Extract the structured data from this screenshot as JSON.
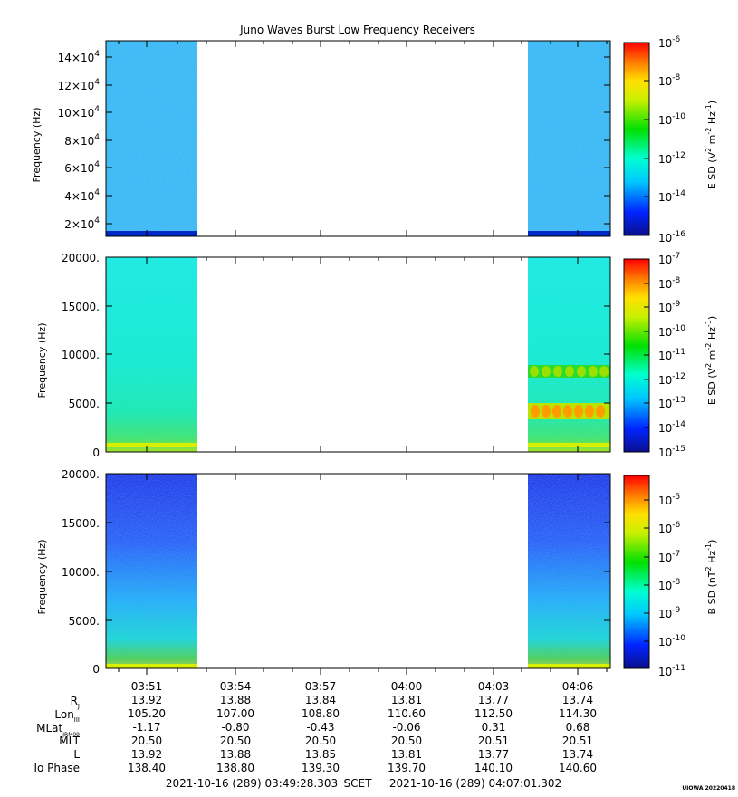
{
  "title": "Juno Waves Burst Low Frequency Receivers",
  "credit": "UIOWA 20220418",
  "footer": {
    "start": "2021-10-16 (289) 03:49:28.303",
    "scet": "SCET",
    "end": "2021-10-16 (289) 04:07:01.302"
  },
  "chart_data": [
    {
      "type": "heatmap",
      "panel": "top",
      "ylabel": "Frequency (Hz)",
      "y_tick_labels": [
        "2×10^4",
        "4×10^4",
        "6×10^4",
        "8×10^4",
        "10×10^4",
        "12×10^4",
        "14×10^4"
      ],
      "y_tick_values": [
        20000,
        40000,
        60000,
        80000,
        100000,
        120000,
        140000
      ],
      "ylim": [
        10000,
        150000
      ],
      "data_intervals": [
        [
          "03:49:28",
          "03:52:40"
        ],
        [
          "04:04:10",
          "04:07:01"
        ]
      ],
      "colorbar": {
        "label": "E SD (V^2 m^-2 Hz^-1)",
        "scale": "log",
        "range": [
          1e-16,
          1e-06
        ],
        "tick_labels": [
          "10-6",
          "10-8",
          "10-10",
          "10-12",
          "10-14",
          "10-16"
        ]
      },
      "features": [
        {
          "desc": "noise floor",
          "level": "1e-14"
        },
        {
          "desc": "band near lower edge",
          "freq_hz": 12000,
          "level": "1e-16"
        }
      ]
    },
    {
      "type": "heatmap",
      "panel": "middle",
      "ylabel": "Frequency (Hz)",
      "y_tick_labels": [
        "0",
        "5000.",
        "10000.",
        "15000.",
        "20000."
      ],
      "y_tick_values": [
        0,
        5000,
        10000,
        15000,
        20000
      ],
      "ylim": [
        0,
        20000
      ],
      "data_intervals": [
        [
          "03:49:28",
          "03:52:40"
        ],
        [
          "04:04:10",
          "04:07:01"
        ]
      ],
      "colorbar": {
        "label": "E SD (V^2 m^-2 Hz^-1)",
        "scale": "log",
        "range": [
          1e-15,
          1e-07
        ],
        "tick_labels": [
          "10-7",
          "10-8",
          "10-9",
          "10-10",
          "10-11",
          "10-12",
          "10-13",
          "10-14",
          "10-15"
        ]
      },
      "features": [
        {
          "desc": "low frequency band",
          "freq_hz": 400,
          "level": "1e-11"
        },
        {
          "desc": "emission band",
          "freq_hz": 4300,
          "level": "1e-10"
        },
        {
          "desc": "emission band",
          "freq_hz": 8200,
          "level": "1e-11"
        }
      ]
    },
    {
      "type": "heatmap",
      "panel": "bottom",
      "ylabel": "Frequency (Hz)",
      "y_tick_labels": [
        "0",
        "5000.",
        "10000.",
        "15000.",
        "20000."
      ],
      "y_tick_values": [
        0,
        5000,
        10000,
        15000,
        20000
      ],
      "ylim": [
        0,
        20000
      ],
      "data_intervals": [
        [
          "03:49:28",
          "03:52:40"
        ],
        [
          "04:04:10",
          "04:07:01"
        ]
      ],
      "colorbar": {
        "label": "B SD (nT^2 Hz^-1)",
        "scale": "log",
        "range": [
          1e-11,
          3e-05
        ],
        "tick_labels": [
          "10-5",
          "10-6",
          "10-7",
          "10-8",
          "10-9",
          "10-10",
          "10-11"
        ]
      },
      "features": [
        {
          "desc": "low frequency band",
          "freq_hz": 500,
          "level": "1e-7"
        }
      ]
    }
  ],
  "time_axis": {
    "xlim": [
      "03:49:28",
      "04:07:01"
    ],
    "major_ticks": [
      "03:51",
      "03:54",
      "03:57",
      "04:00",
      "04:03",
      "04:06"
    ],
    "minor_tick_interval_min": 1
  },
  "ephemeris": {
    "rows": [
      {
        "label": "R",
        "sub": "J",
        "values": [
          "13.92",
          "13.88",
          "13.84",
          "13.81",
          "13.77",
          "13.74"
        ]
      },
      {
        "label": "Lon",
        "sub": "III",
        "values": [
          "105.20",
          "107.00",
          "108.80",
          "110.60",
          "112.50",
          "114.30"
        ]
      },
      {
        "label": "MLat",
        "sub": "JRM09",
        "values": [
          "-1.17",
          "-0.80",
          "-0.43",
          "-0.06",
          "0.31",
          "0.68"
        ]
      },
      {
        "label": "MLT",
        "sub": "",
        "values": [
          "20.50",
          "20.50",
          "20.50",
          "20.50",
          "20.51",
          "20.51"
        ]
      },
      {
        "label": "L",
        "sub": "",
        "values": [
          "13.92",
          "13.88",
          "13.85",
          "13.81",
          "13.77",
          "13.74"
        ]
      },
      {
        "label": "Io Phase",
        "sub": "",
        "values": [
          "138.40",
          "138.80",
          "139.30",
          "139.70",
          "140.10",
          "140.60"
        ]
      }
    ]
  }
}
